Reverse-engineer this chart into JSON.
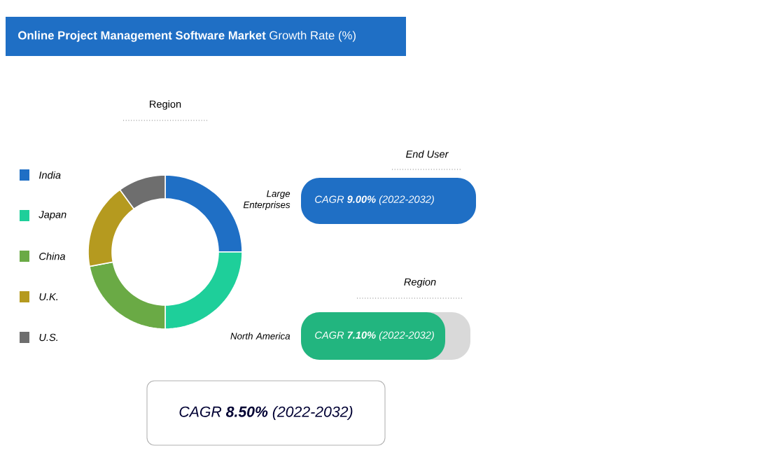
{
  "chart_data": [
    {
      "type": "donut",
      "title": "**Online Project Management Software Market** Growth Rate (%)",
      "subtitle": "Region",
      "categories": [
        "India",
        "Japan",
        "China",
        "U.K.",
        "U.S."
      ],
      "values": [
        25,
        25,
        22,
        18,
        10
      ],
      "colors": [
        "#1f6fc5",
        "#1ecf9a",
        "#6aaa45",
        "#b59a1f",
        "#6e6e6e"
      ],
      "legend": "left"
    },
    {
      "type": "other",
      "annotations": [
        "End User",
        "Large Enterprises",
        "CAGR **9.00%** (2022-2032)",
        "Region",
        "North America",
        "CAGR **7.10%** (2022-2032)",
        "CAGR **8.50%** (2022-2032)"
      ]
    }
  ]
}
